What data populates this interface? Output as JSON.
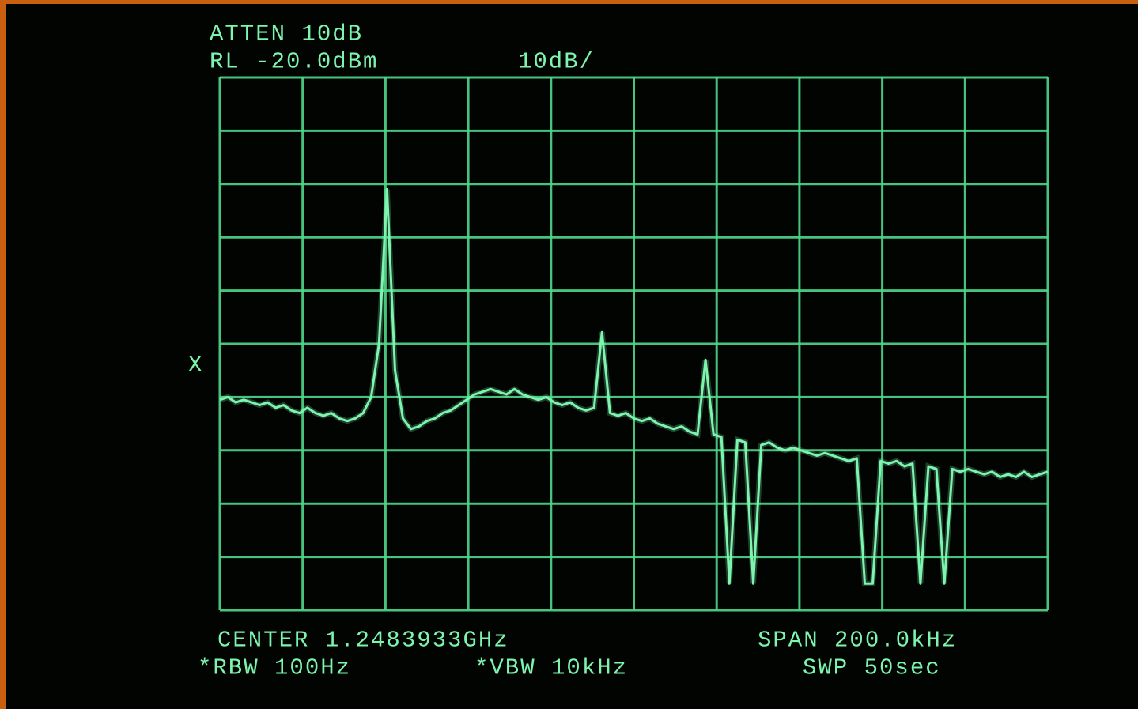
{
  "chart_data": {
    "type": "line",
    "header": [
      "ATTEN 10dB",
      "RL -20.0dBm",
      "10dB/"
    ],
    "footer": [
      "CENTER 1.2483933GHz",
      "SPAN 200.0kHz",
      "*RBW 100Hz",
      "*VBW 10kHz",
      "SWP 50sec"
    ],
    "reference_marker": "X",
    "color": "#7df5ae",
    "ylim": [
      -120,
      -20
    ],
    "yticks": [
      -120,
      -110,
      -100,
      -90,
      -80,
      -70,
      -60,
      -50,
      -40,
      -30,
      -20
    ],
    "grid": true,
    "values": [
      -80.5,
      -80,
      -81,
      -80.5,
      -81,
      -81.5,
      -81,
      -82,
      -81.5,
      -82.5,
      -83,
      -82,
      -83,
      -83.5,
      -83,
      -84,
      -84.5,
      -84,
      -83,
      -80,
      -70,
      -41,
      -75,
      -84,
      -86,
      -85.5,
      -84.5,
      -84,
      -83,
      -82.5,
      -81.5,
      -80.5,
      -79.5,
      -79,
      -78.5,
      -79,
      -79.5,
      -78.5,
      -79.5,
      -80,
      -80.5,
      -80,
      -81,
      -81.5,
      -81,
      -82,
      -82.5,
      -82,
      -67.8,
      -83,
      -83.5,
      -83,
      -84,
      -84.5,
      -84,
      -85,
      -85.5,
      -86,
      -85.5,
      -86.5,
      -87,
      -73,
      -87,
      -87.5,
      -115,
      -88,
      -88.5,
      -115,
      -89,
      -88.5,
      -89.5,
      -90,
      -89.5,
      -90,
      -90.5,
      -91,
      -90.5,
      -91,
      -91.5,
      -92,
      -91.5,
      -115,
      -115,
      -92,
      -92.5,
      -92,
      -93,
      -92.5,
      -115,
      -93,
      -93.5,
      -115,
      -93.5,
      -94,
      -93.5,
      -94,
      -94.5,
      -94,
      -95,
      -94.5,
      -95,
      -94,
      -95,
      -94.5,
      -94
    ]
  }
}
